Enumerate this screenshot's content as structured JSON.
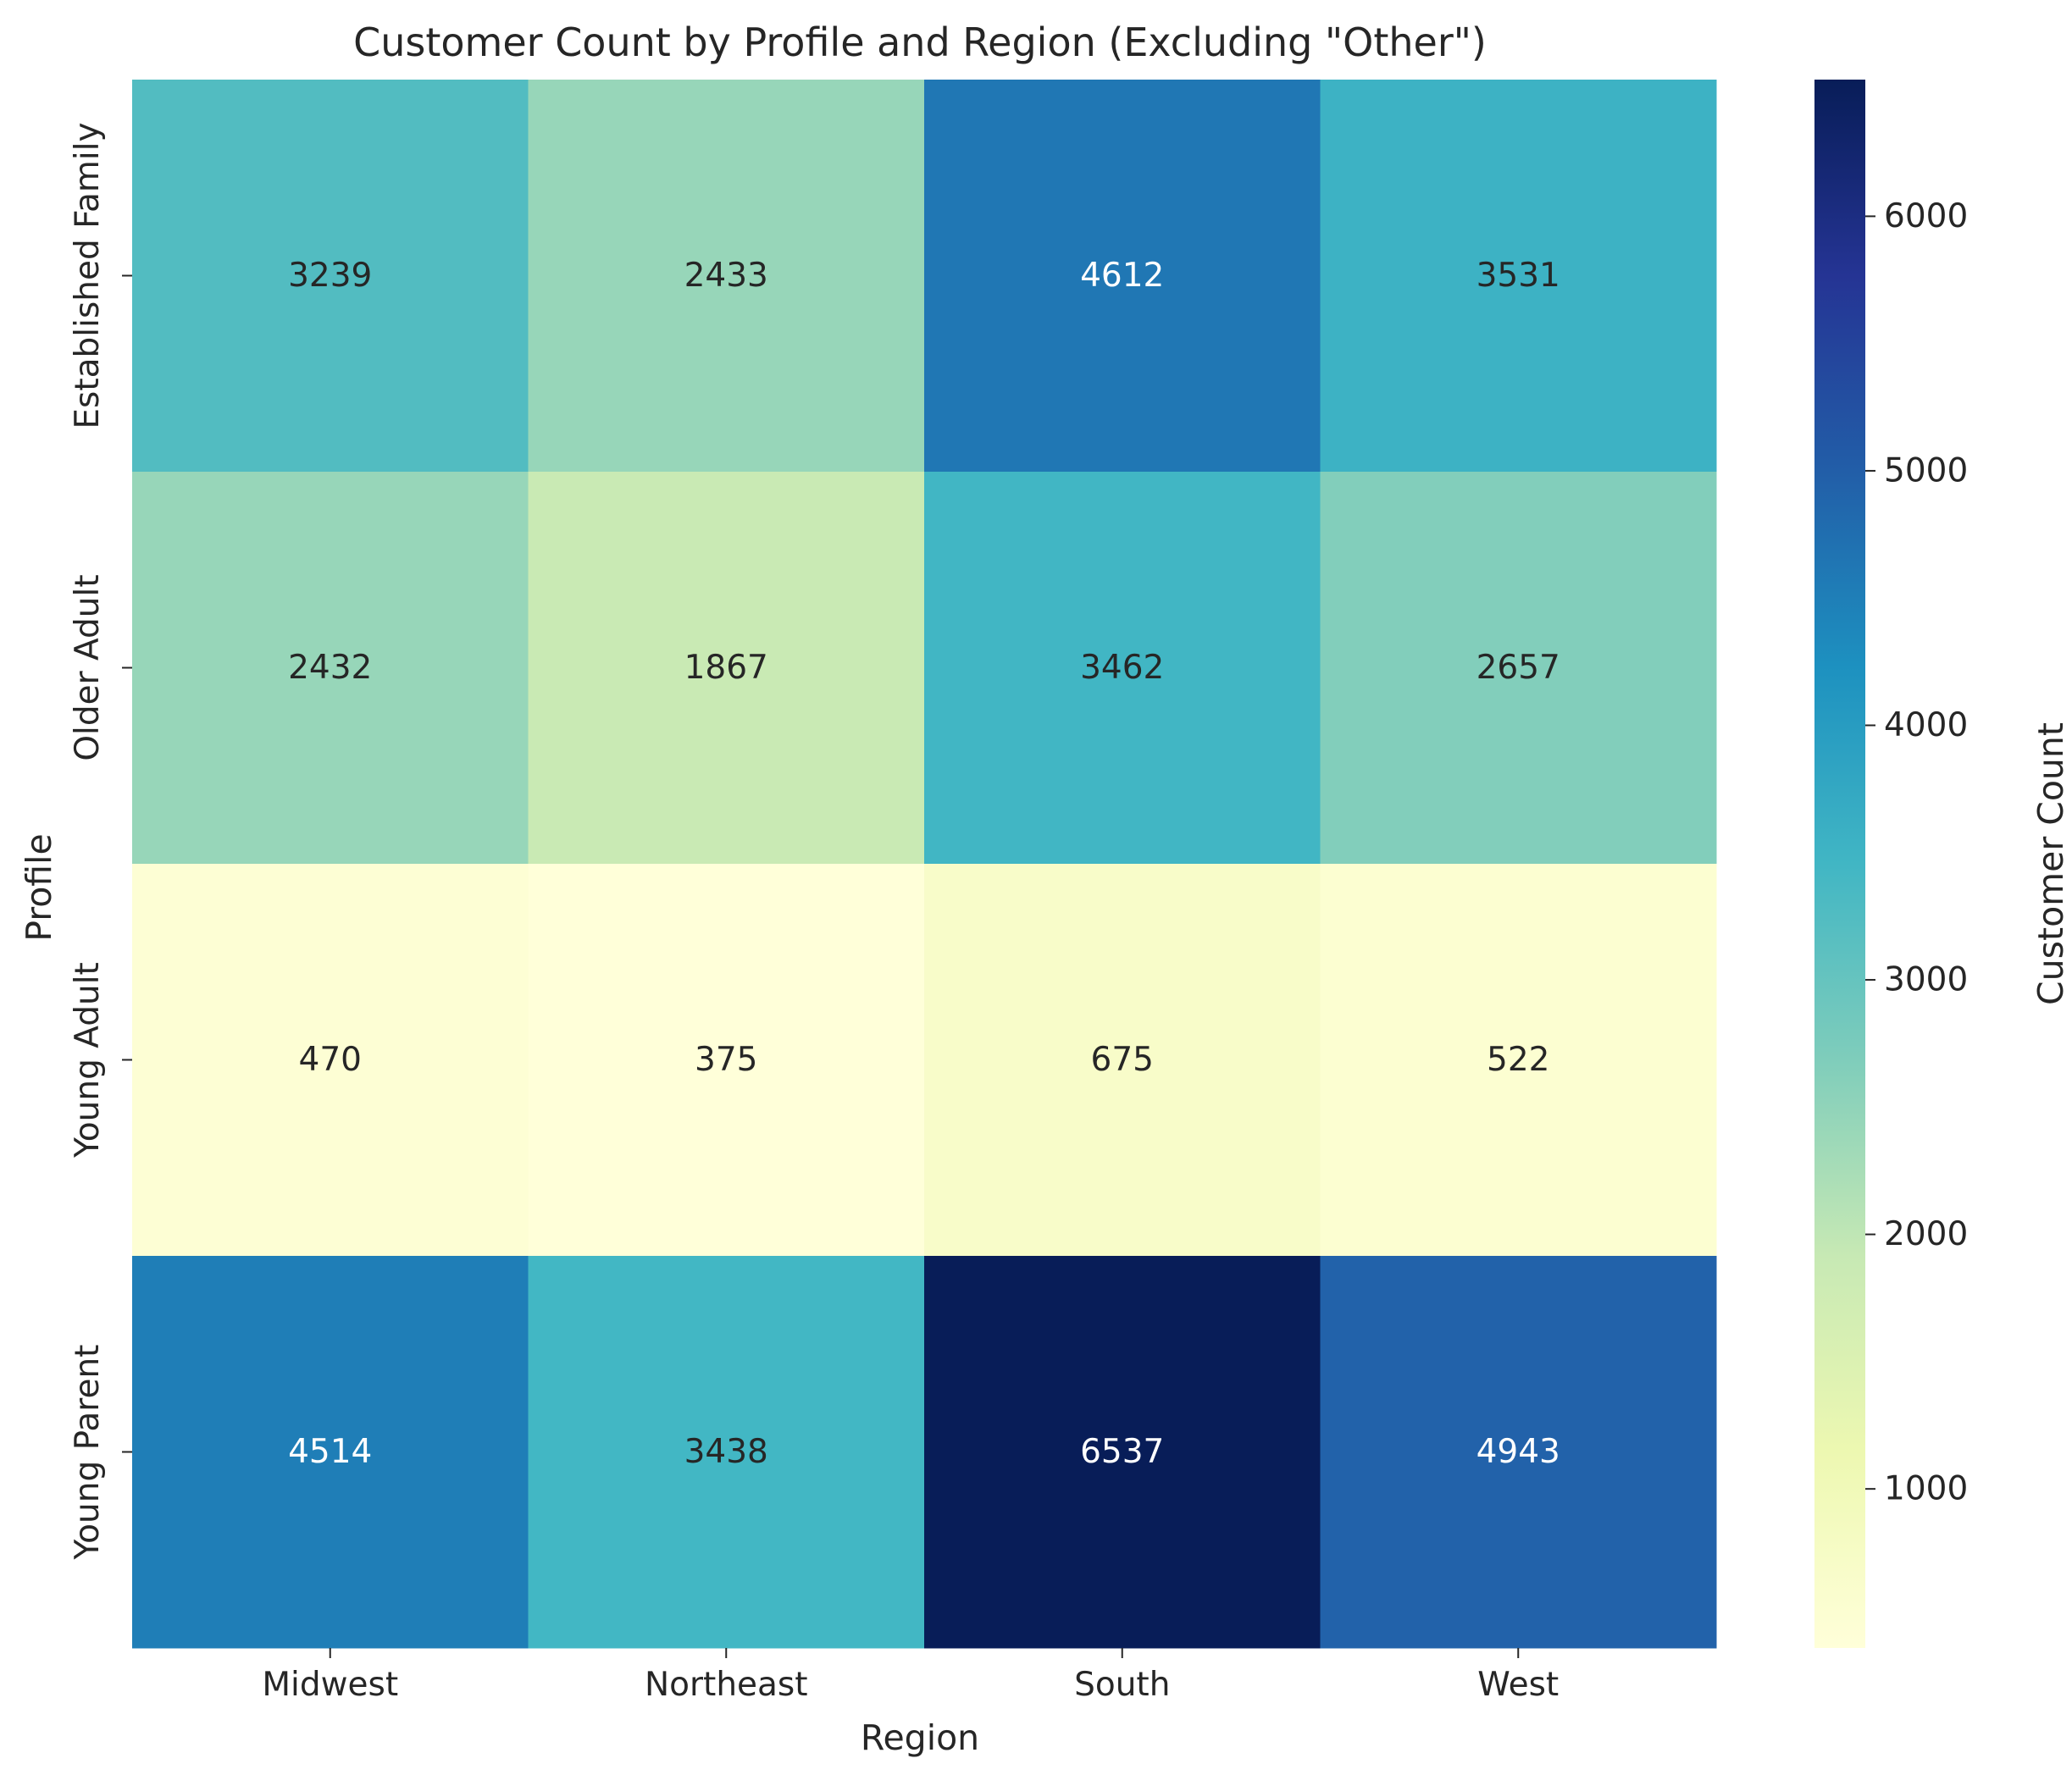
{
  "chart_data": {
    "type": "heatmap",
    "title": "Customer Count by Profile and Region (Excluding \"Other\")",
    "xlabel": "Region",
    "ylabel": "Profile",
    "x_categories": [
      "Midwest",
      "Northeast",
      "South",
      "West"
    ],
    "y_categories": [
      "Established Family",
      "Older Adult",
      "Young Adult",
      "Young Parent"
    ],
    "values": [
      [
        3239,
        2433,
        4612,
        3531
      ],
      [
        2432,
        1867,
        3462,
        2657
      ],
      [
        470,
        375,
        675,
        522
      ],
      [
        4514,
        3438,
        6537,
        4943
      ]
    ],
    "colorbar": {
      "label": "Customer Count",
      "colormap": "YlGnBu",
      "range": [
        375,
        6537
      ],
      "ticks": [
        1000,
        2000,
        3000,
        4000,
        5000,
        6000
      ]
    },
    "annotation_colors": {
      "dark_text": "#262626",
      "light_text": "#ffffff"
    },
    "grid": false
  }
}
